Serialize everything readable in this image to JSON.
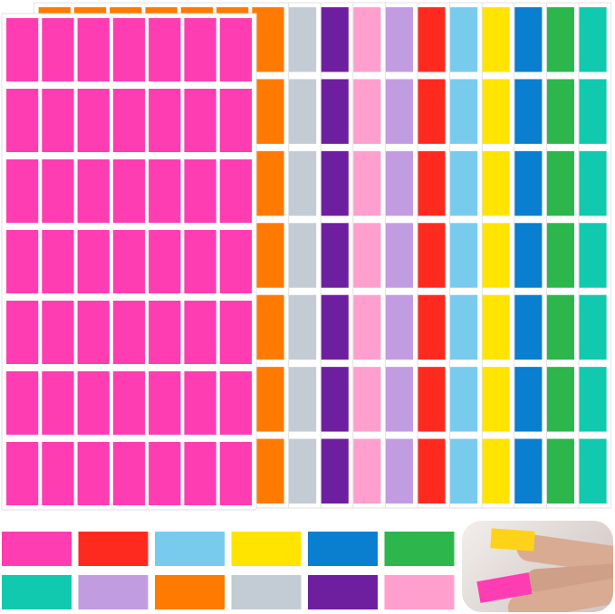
{
  "product": {
    "sheet_colors_front_to_back": [
      "#ff3db2",
      "#ff7a00",
      "#c3ccd4",
      "#6e1fa0",
      "#ff9fce",
      "#c29ce0",
      "#ff2a1f",
      "#78cbed",
      "#ffe400",
      "#0a7ecf",
      "#2db64b",
      "#11c9ae"
    ],
    "sheet_grid": {
      "columns": 7,
      "rows": 7
    },
    "swatch_rows": [
      [
        "#ff3db2",
        "#ff2a1f",
        "#78cbed",
        "#ffe400",
        "#0a7ecf",
        "#2db64b"
      ],
      [
        "#11c9ae",
        "#c29ce0",
        "#ff7a00",
        "#c3ccd4",
        "#6e1fa0",
        "#ff9fce"
      ]
    ],
    "demo_label_colors": [
      "#ffd21a",
      "#ff3db2"
    ]
  }
}
